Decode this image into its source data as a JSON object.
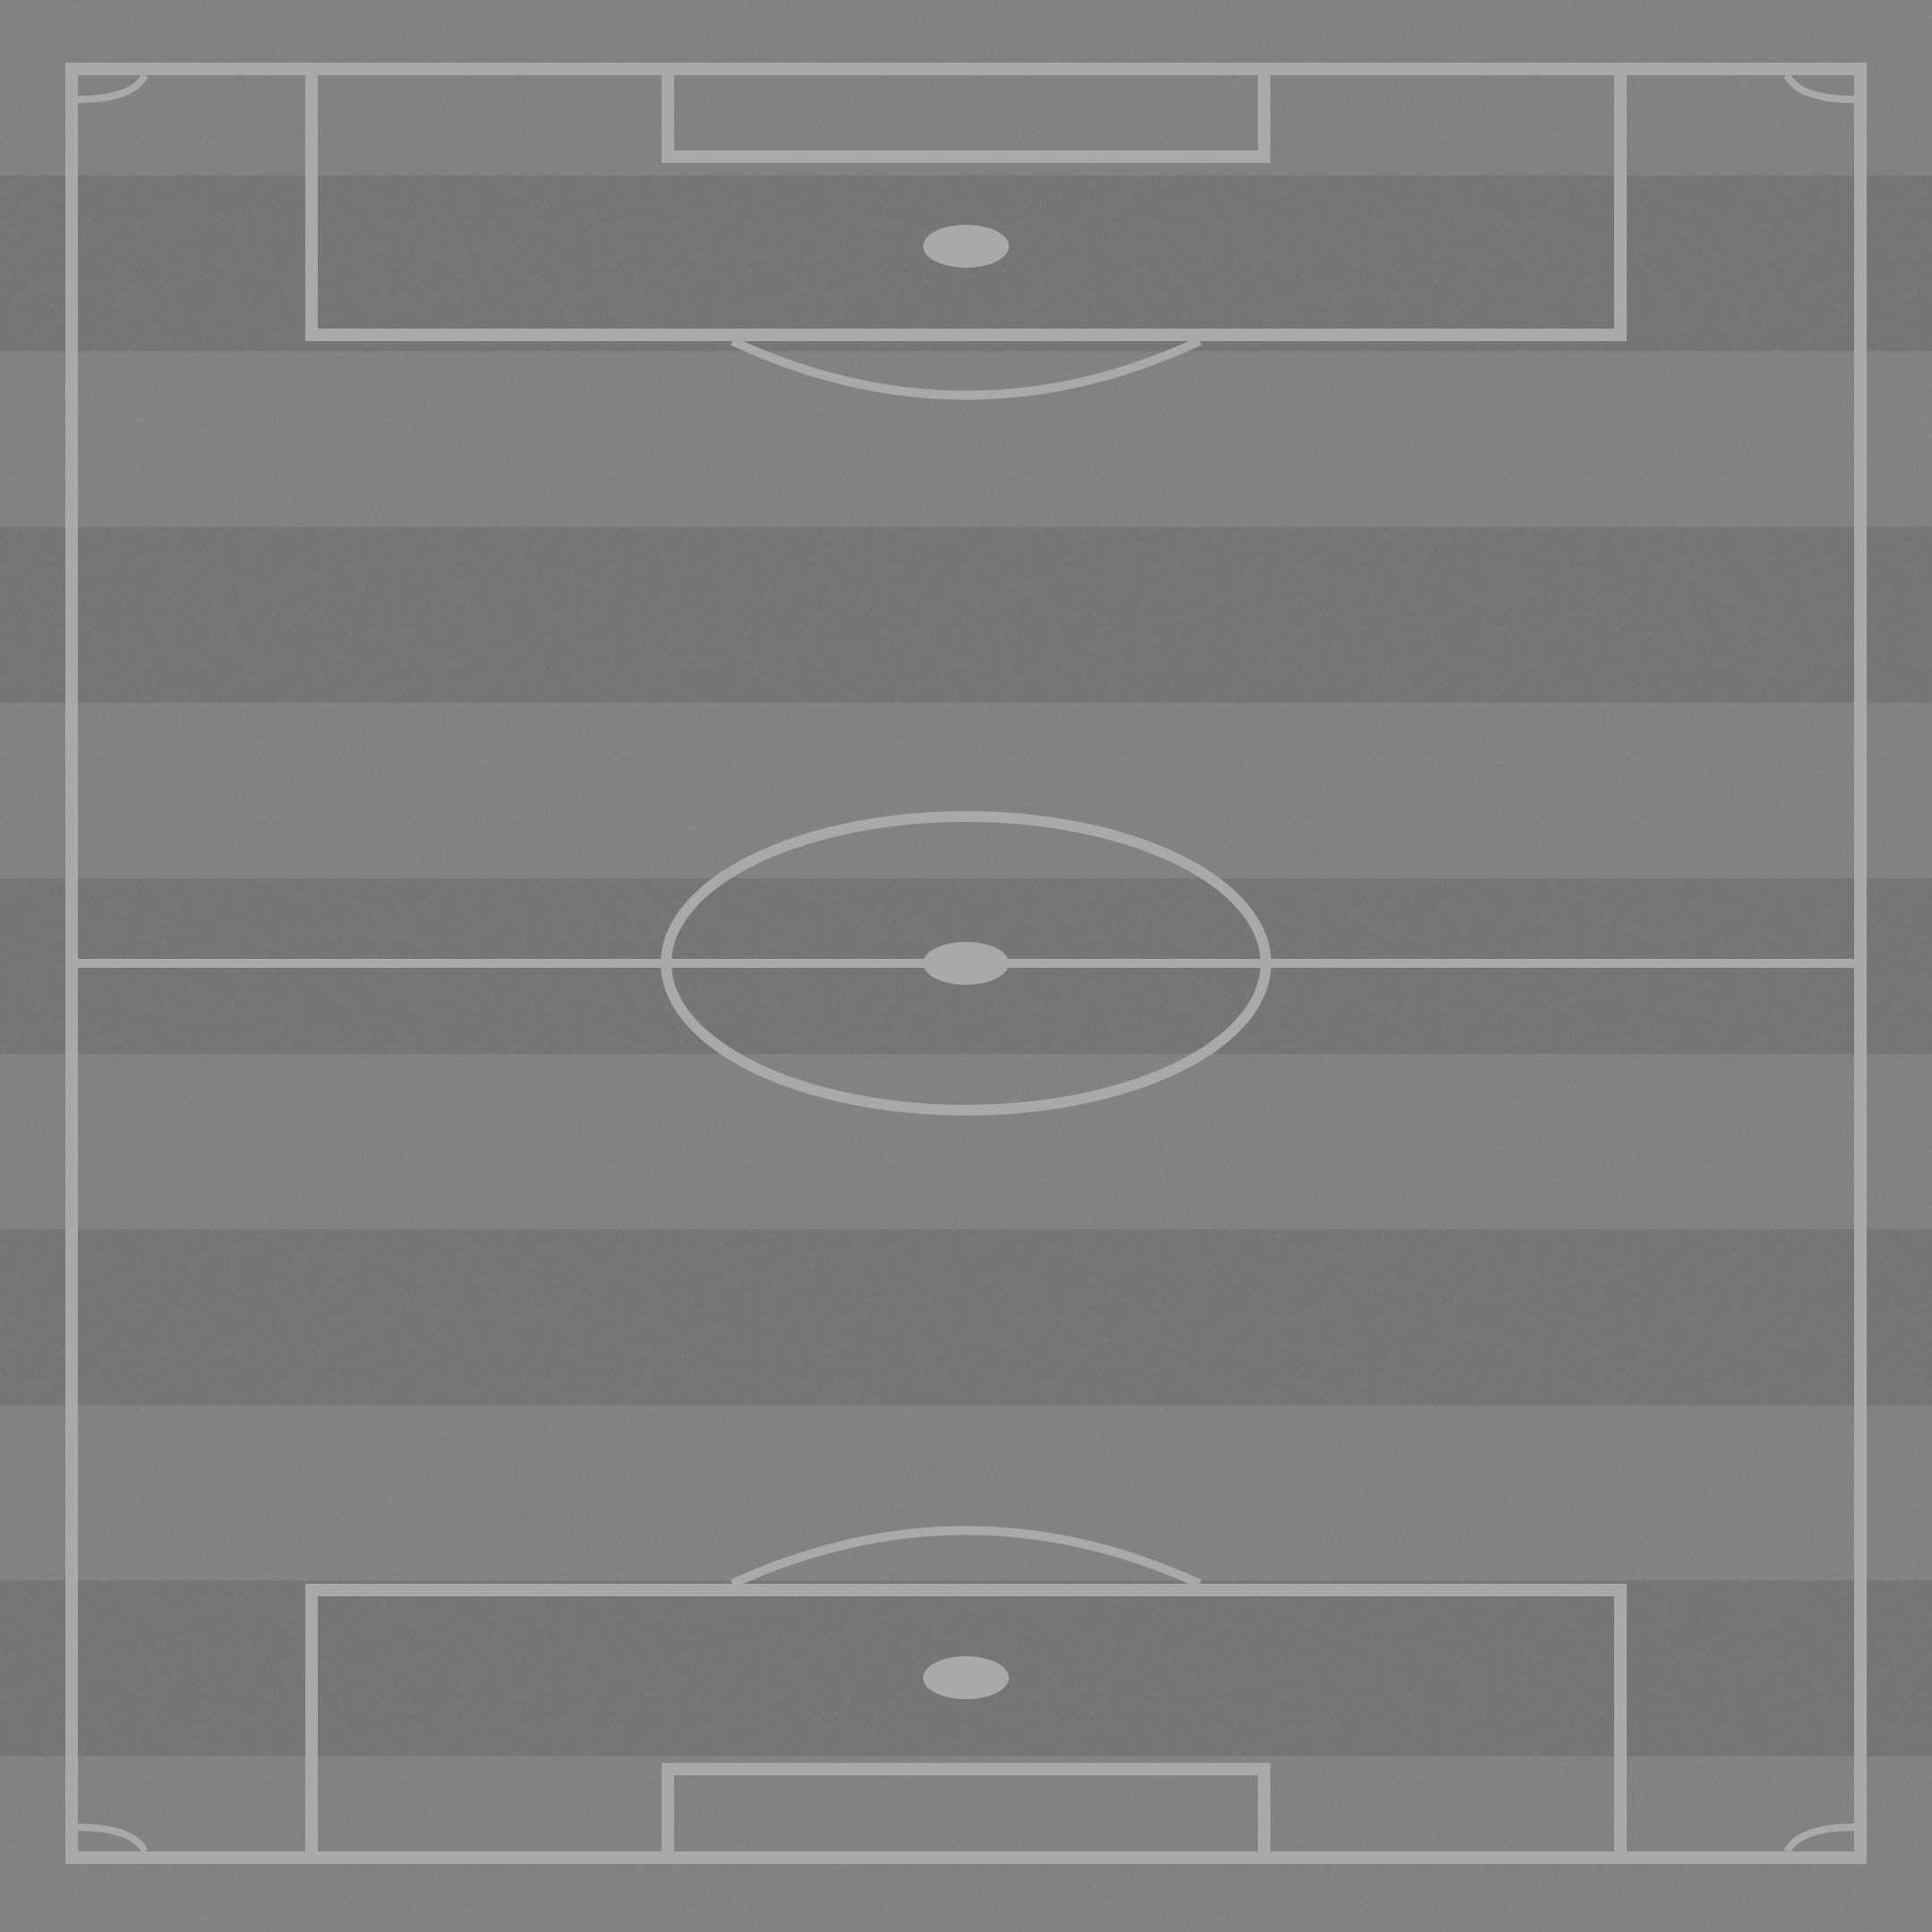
{
  "pitch": {
    "surface": "grass",
    "orientation": "vertical",
    "stripe_count": 11,
    "colors": {
      "stripe_light": "#7d7d7d",
      "stripe_dark": "#6f6f6f",
      "lines": "#a9a9a9",
      "grass_texture": "#8a8a8a"
    }
  }
}
